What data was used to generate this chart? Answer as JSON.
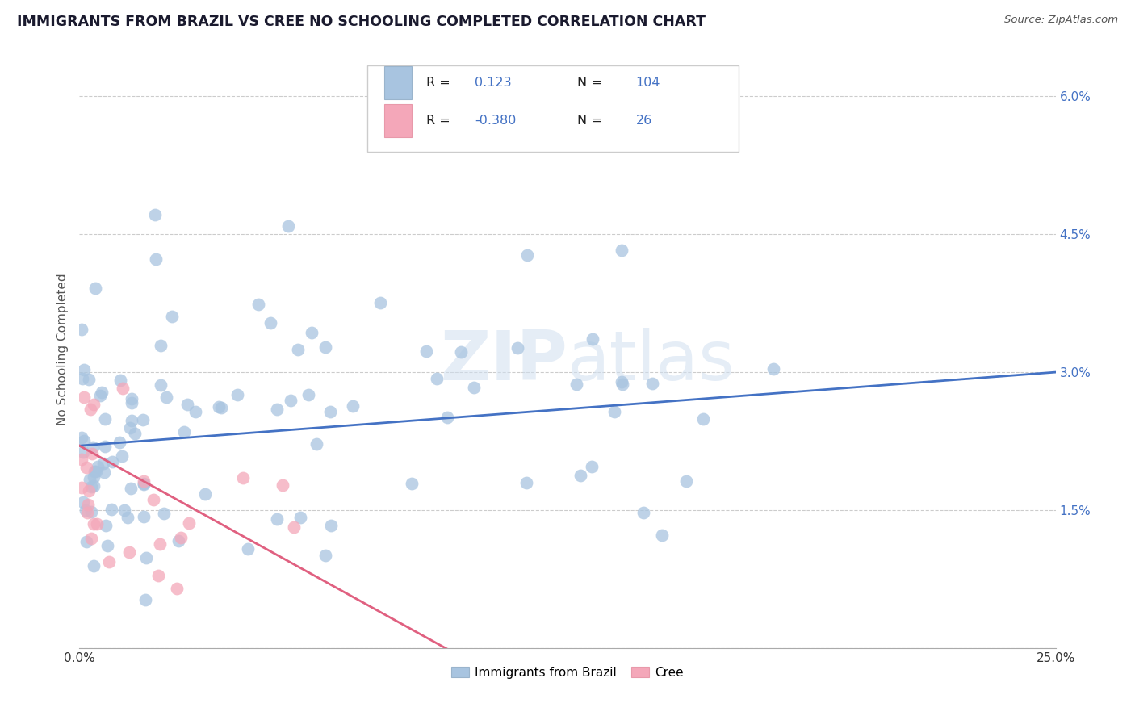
{
  "title": "IMMIGRANTS FROM BRAZIL VS CREE NO SCHOOLING COMPLETED CORRELATION CHART",
  "source": "Source: ZipAtlas.com",
  "ylabel": "No Schooling Completed",
  "xlim": [
    0.0,
    0.25
  ],
  "ylim": [
    0.0,
    0.065
  ],
  "xtick_positions": [
    0.0,
    0.05,
    0.1,
    0.15,
    0.2,
    0.25
  ],
  "ytick_positions": [
    0.0,
    0.015,
    0.03,
    0.045,
    0.06
  ],
  "xtick_labels": [
    "0.0%",
    "",
    "",
    "",
    "",
    "25.0%"
  ],
  "ytick_labels": [
    "",
    "1.5%",
    "3.0%",
    "4.5%",
    "6.0%"
  ],
  "blue_R": 0.123,
  "blue_N": 104,
  "pink_R": -0.38,
  "pink_N": 26,
  "blue_color": "#a8c4e0",
  "pink_color": "#f4a7b9",
  "blue_line_color": "#4472c4",
  "pink_line_color": "#e06080",
  "blue_label_color": "#4472c4",
  "pink_label_color": "#e06080",
  "legend_blue_label": "Immigrants from Brazil",
  "legend_pink_label": "Cree",
  "tick_label_color": "#4472c4",
  "blue_line_start_y": 0.022,
  "blue_line_end_y": 0.03,
  "pink_line_start_y": 0.022,
  "pink_line_end_y": -0.005
}
